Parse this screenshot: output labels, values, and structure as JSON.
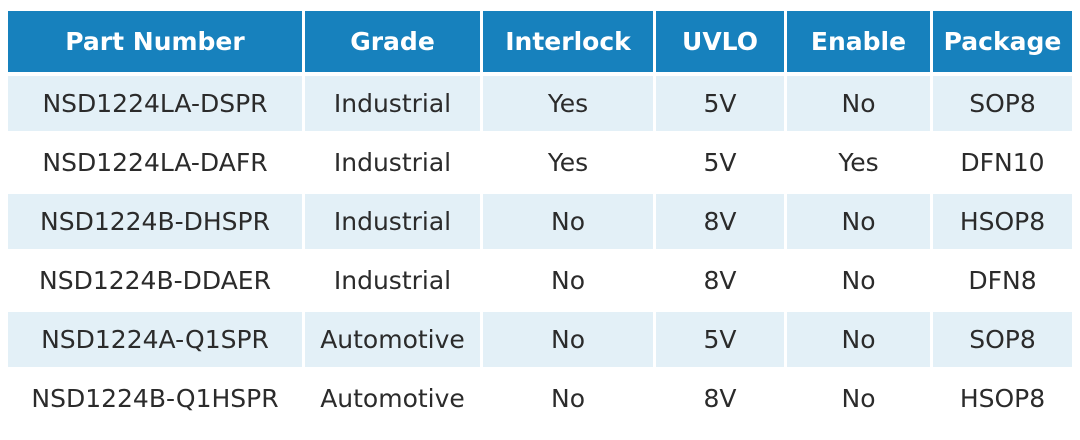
{
  "colors": {
    "header_background": "#1781bd",
    "header_text": "#ffffff",
    "stripe_background": "#e3f0f7",
    "row_background": "#ffffff",
    "cell_text": "#2b2b2b"
  },
  "table": {
    "headers": [
      "Part Number",
      "Grade",
      "Interlock",
      "UVLO",
      "Enable",
      "Package"
    ],
    "rows": [
      [
        "NSD1224LA-DSPR",
        "Industrial",
        "Yes",
        "5V",
        "No",
        "SOP8"
      ],
      [
        "NSD1224LA-DAFR",
        "Industrial",
        "Yes",
        "5V",
        "Yes",
        "DFN10"
      ],
      [
        "NSD1224B-DHSPR",
        "Industrial",
        "No",
        "8V",
        "No",
        "HSOP8"
      ],
      [
        "NSD1224B-DDAER",
        "Industrial",
        "No",
        "8V",
        "No",
        "DFN8"
      ],
      [
        "NSD1224A-Q1SPR",
        "Automotive",
        "No",
        "5V",
        "No",
        "SOP8"
      ],
      [
        "NSD1224B-Q1HSPR",
        "Automotive",
        "No",
        "8V",
        "No",
        "HSOP8"
      ]
    ]
  }
}
